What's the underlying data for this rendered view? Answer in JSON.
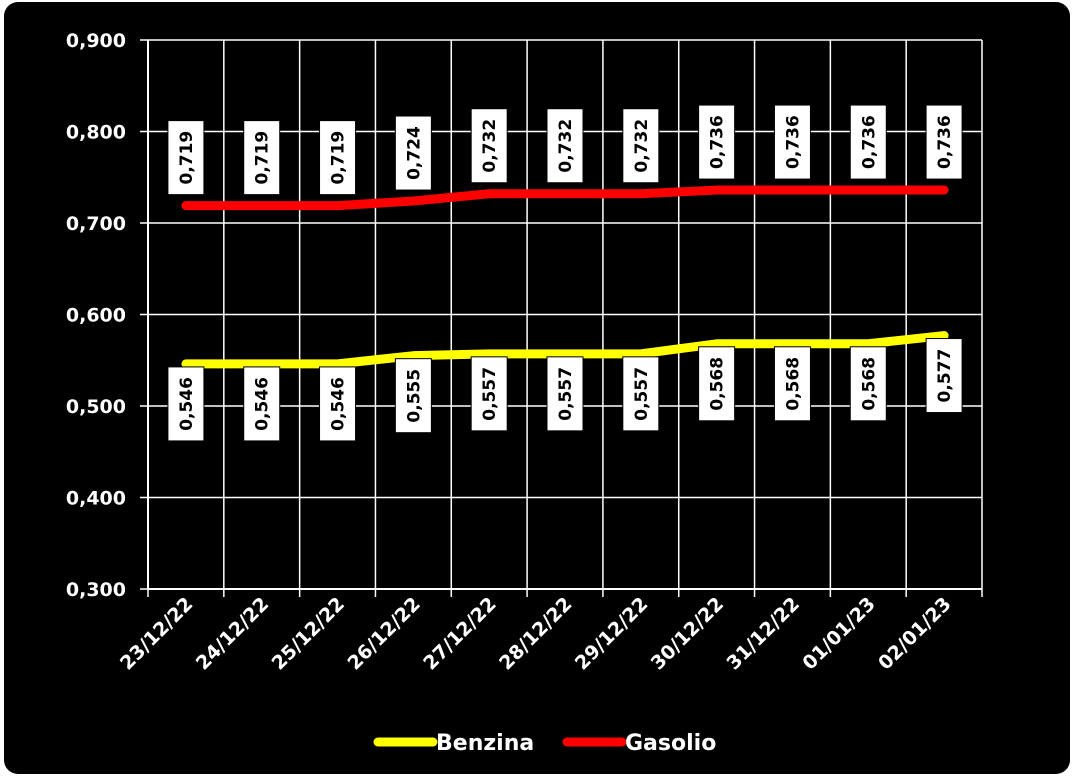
{
  "chart_data": {
    "type": "line",
    "title": "",
    "xlabel": "",
    "ylabel": "",
    "categories": [
      "23/12/22",
      "24/12/22",
      "25/12/22",
      "26/12/22",
      "27/12/22",
      "28/12/22",
      "29/12/22",
      "30/12/22",
      "31/12/22",
      "01/01/23",
      "02/01/23"
    ],
    "ylim": [
      0.3,
      0.9
    ],
    "y_ticks": [
      "0,300",
      "0,400",
      "0,500",
      "0,600",
      "0,700",
      "0,800",
      "0,900"
    ],
    "grid": true,
    "legend_position": "bottom",
    "series": [
      {
        "name": "Benzina",
        "color": "#ffff00",
        "values": [
          0.546,
          0.546,
          0.546,
          0.555,
          0.557,
          0.557,
          0.557,
          0.568,
          0.568,
          0.568,
          0.577
        ],
        "labels": [
          "0,546",
          "0,546",
          "0,546",
          "0,555",
          "0,557",
          "0,557",
          "0,557",
          "0,568",
          "0,568",
          "0,568",
          "0,577"
        ]
      },
      {
        "name": "Gasolio",
        "color": "#ff0000",
        "values": [
          0.719,
          0.719,
          0.719,
          0.724,
          0.732,
          0.732,
          0.732,
          0.736,
          0.736,
          0.736,
          0.736
        ],
        "labels": [
          "0,719",
          "0,719",
          "0,719",
          "0,724",
          "0,732",
          "0,732",
          "0,732",
          "0,736",
          "0,736",
          "0,736",
          "0,736"
        ]
      }
    ]
  }
}
